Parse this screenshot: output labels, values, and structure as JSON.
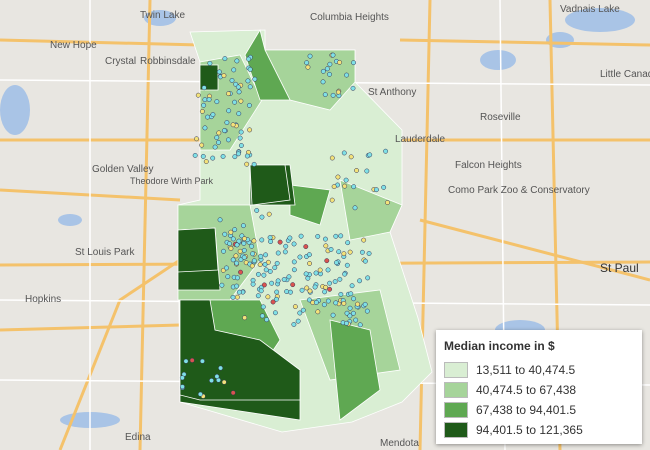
{
  "legend": {
    "title": "Median income in $",
    "items": [
      {
        "label": "13,511 to 40,474.5",
        "color": "#d9eed3"
      },
      {
        "label": "40,474.5 to 67,438",
        "color": "#a6d49a"
      },
      {
        "label": "67,438 to 94,401.5",
        "color": "#5fa852"
      },
      {
        "label": "94,401.5 to 121,365",
        "color": "#1f5a19"
      }
    ]
  },
  "places": [
    "Twin Lake",
    "Columbia Heights",
    "New Hope",
    "Crystal",
    "Robbinsdale",
    "St Anthony",
    "Vadnais Lake",
    "Little Canada",
    "Roseville",
    "Lauderdale",
    "Golden Valley",
    "Falcon Heights",
    "Como Park Zoo & Conservatory",
    "St Louis Park",
    "Hopkins",
    "St Paul",
    "Edina",
    "Mendota",
    "Theodore Wirth Park"
  ]
}
